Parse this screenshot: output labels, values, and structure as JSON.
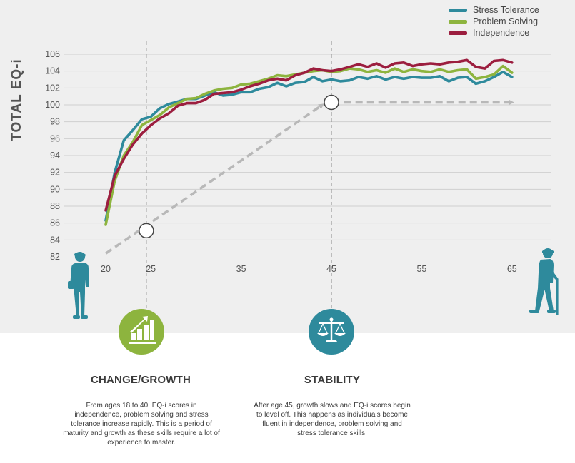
{
  "colors": {
    "stress_tolerance": "#2e8a9c",
    "problem_solving": "#8db43e",
    "independence": "#9c1e3f",
    "icon_green": "#8db43e",
    "icon_teal": "#2e8a9c",
    "figure": "#2e8a9c",
    "arrow": "#b8b8b8"
  },
  "chart_data": {
    "type": "line",
    "ylabel": "TOTAL EQ-i",
    "xlabel": "",
    "xlim": [
      18,
      70
    ],
    "ylim": [
      82,
      107
    ],
    "x_ticks": [
      20,
      25,
      35,
      45,
      55,
      65
    ],
    "y_ticks": [
      82,
      84,
      86,
      88,
      90,
      92,
      94,
      96,
      98,
      100,
      102,
      104,
      106
    ],
    "grid": true,
    "legend_position": "top-right",
    "x": [
      20,
      21,
      22,
      23,
      24,
      25,
      26,
      27,
      28,
      29,
      30,
      31,
      32,
      33,
      34,
      35,
      36,
      37,
      38,
      39,
      40,
      41,
      42,
      43,
      44,
      45,
      46,
      47,
      48,
      49,
      50,
      51,
      52,
      53,
      54,
      55,
      56,
      57,
      58,
      59,
      60,
      61,
      62,
      63,
      64,
      65
    ],
    "series": [
      {
        "name": "Stress Tolerance",
        "values": [
          86.3,
          92.0,
          95.8,
          97.0,
          98.3,
          98.6,
          99.6,
          100.1,
          100.4,
          100.7,
          100.7,
          101.1,
          101.5,
          101.1,
          101.2,
          101.5,
          101.5,
          101.9,
          102.1,
          102.6,
          102.2,
          102.6,
          102.7,
          103.3,
          102.8,
          103.0,
          102.8,
          102.9,
          103.3,
          103.1,
          103.4,
          103.0,
          103.3,
          103.1,
          103.3,
          103.2,
          103.2,
          103.4,
          102.8,
          103.2,
          103.3,
          102.5,
          102.8,
          103.3,
          103.9,
          103.3
        ]
      },
      {
        "name": "Problem Solving",
        "values": [
          85.8,
          91.0,
          94.0,
          95.6,
          97.6,
          98.2,
          98.8,
          99.7,
          100.2,
          100.7,
          100.8,
          101.3,
          101.7,
          101.9,
          102.0,
          102.4,
          102.5,
          102.8,
          103.1,
          103.5,
          103.4,
          103.6,
          103.8,
          104.0,
          104.1,
          103.9,
          104.0,
          104.3,
          104.2,
          103.9,
          104.1,
          103.8,
          104.3,
          103.9,
          104.2,
          104.0,
          103.9,
          104.2,
          103.9,
          104.1,
          104.2,
          103.1,
          103.3,
          103.6,
          104.6,
          103.8
        ]
      },
      {
        "name": "Independence",
        "values": [
          87.5,
          91.6,
          93.6,
          95.3,
          96.6,
          97.6,
          98.4,
          99.0,
          99.9,
          100.2,
          100.2,
          100.6,
          101.3,
          101.4,
          101.5,
          101.8,
          102.2,
          102.5,
          102.9,
          103.1,
          102.9,
          103.5,
          103.8,
          104.3,
          104.1,
          104.0,
          104.2,
          104.5,
          104.8,
          104.5,
          104.9,
          104.4,
          104.9,
          105.0,
          104.6,
          104.8,
          104.9,
          104.8,
          105.0,
          105.1,
          105.3,
          104.5,
          104.3,
          105.2,
          105.3,
          105.0
        ]
      }
    ],
    "annotations": [
      {
        "type": "vline",
        "x": 24.5
      },
      {
        "type": "vline",
        "x": 45
      },
      {
        "type": "marker",
        "x": 24.5,
        "y": 85.1
      },
      {
        "type": "marker",
        "x": 45,
        "y": 100.3
      },
      {
        "type": "arrow",
        "from": {
          "x": 20,
          "y": 82.4
        },
        "to": {
          "x": 44,
          "y": 100
        }
      },
      {
        "type": "arrow",
        "from": {
          "x": 46.4,
          "y": 100.3
        },
        "to": {
          "x": 65,
          "y": 100.3
        }
      }
    ]
  },
  "sections": [
    {
      "title": "CHANGE/GROWTH",
      "body": "From ages 18 to 40, EQ-i scores in independence, problem solving and stress tolerance increase rapidly. This is a period of maturity and growth as these skills require a lot of experience to master.",
      "icon": "growth-chart-icon"
    },
    {
      "title": "STABILITY",
      "body": "After age 45, growth slows and EQ-i scores begin to level off. This happens as individuals become fluent in independence, problem solving and stress tolerance skills.",
      "icon": "scales-icon"
    }
  ],
  "figures": [
    "young-person-icon",
    "elderly-person-with-cane-icon"
  ]
}
